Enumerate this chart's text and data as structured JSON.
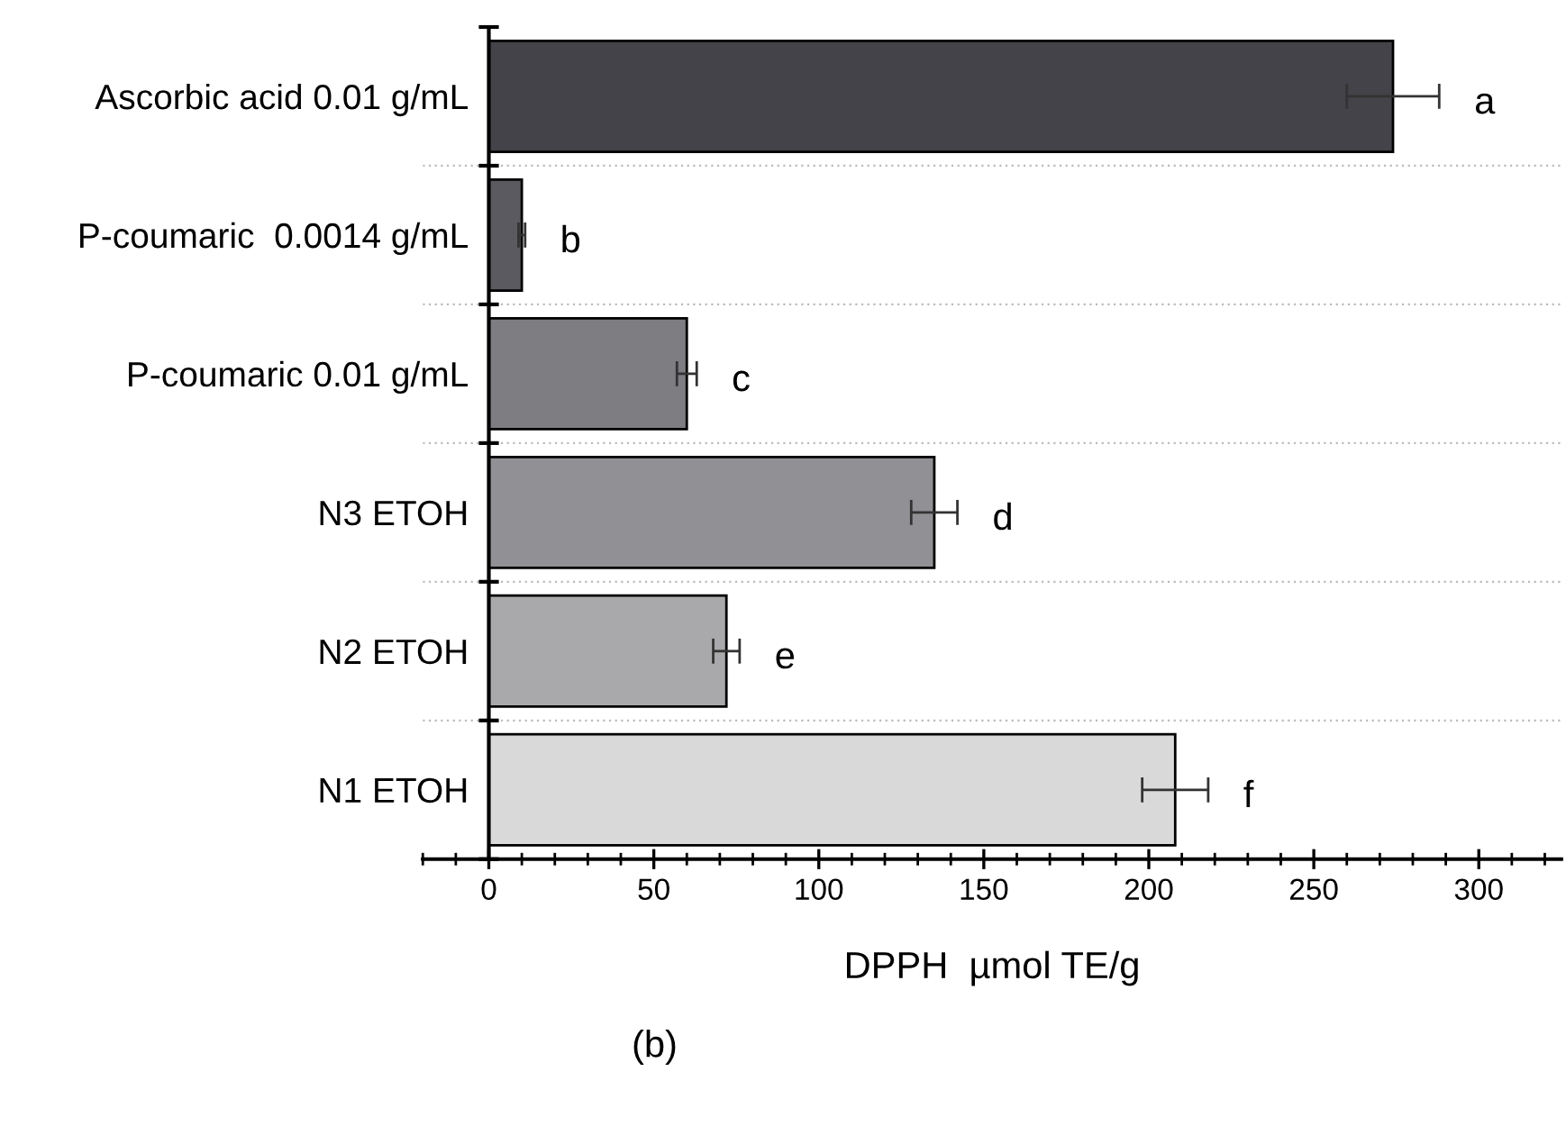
{
  "chart_data": {
    "type": "bar",
    "orientation": "horizontal",
    "xlabel": "DPPH  µmol TE/g",
    "categories": [
      "Ascorbic acid 0.01 g/mL",
      "P-coumaric  0.0014 g/mL",
      "P-coumaric 0.01 g/mL",
      "N3 ETOH",
      "N2 ETOH",
      "N1 ETOH"
    ],
    "values": [
      274,
      10,
      60,
      135,
      72,
      208
    ],
    "errors": [
      14,
      1,
      3,
      7,
      4,
      10
    ],
    "colors": [
      "#434349",
      "#5a5a60",
      "#7d7d82",
      "#909095",
      "#a9a9ab",
      "#d9d9d9"
    ],
    "xlim": [
      -20,
      325
    ],
    "xticks": [
      0,
      50,
      100,
      150,
      200,
      250,
      300
    ],
    "grid": "y",
    "annotations": [
      "a",
      "b",
      "c",
      "d",
      "e",
      "f",
      "(b)"
    ]
  }
}
